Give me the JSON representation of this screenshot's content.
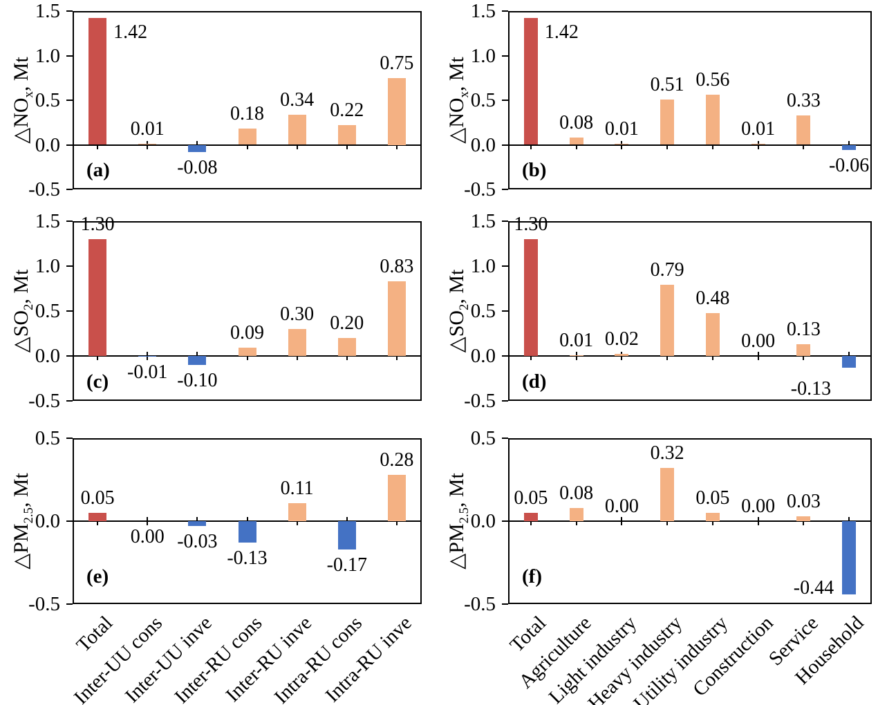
{
  "palette": {
    "total_bar": "#C9504B",
    "positive_bar": "#F4B183",
    "negative_bar": "#4472C4",
    "axis": "#000000",
    "text": "#000000",
    "background": "#FFFFFF"
  },
  "chart_data": [
    {
      "type": "bar",
      "panel_tag": "(a)",
      "ylabel": "△NOx, Mt",
      "ylabel_parts": {
        "pre": "△NO",
        "sub": "x",
        "post": ", Mt"
      },
      "ylim": [
        -0.5,
        1.5
      ],
      "yticks": [
        "1.5",
        "1.0",
        "0.5",
        "0.0",
        "-0.5"
      ],
      "grid": false,
      "legend": null,
      "categories": [
        "Total",
        "Inter-UU cons",
        "Inter-UU inve",
        "Inter-RU cons",
        "Inter-RU inve",
        "Intra-RU cons",
        "Intra-RU inve"
      ],
      "values": [
        1.42,
        0.01,
        -0.08,
        0.18,
        0.34,
        0.22,
        0.75
      ],
      "data_labels": [
        "1.42",
        "0.01",
        "-0.08",
        "0.18",
        "0.34",
        "0.22",
        "0.75"
      ],
      "label_placements": [
        "right",
        "above",
        "below",
        "above",
        "above",
        "above",
        "above"
      ]
    },
    {
      "type": "bar",
      "panel_tag": "(b)",
      "ylabel": "△NOx, Mt",
      "ylabel_parts": {
        "pre": "△NO",
        "sub": "x",
        "post": ", Mt"
      },
      "ylim": [
        -0.5,
        1.5
      ],
      "yticks": [
        "1.5",
        "1.0",
        "0.5",
        "0.0",
        "-0.5"
      ],
      "grid": false,
      "legend": null,
      "categories": [
        "Total",
        "Agriculture",
        "Light industry",
        "Heavy industry",
        "Utility industry",
        "Construction",
        "Service",
        "Household"
      ],
      "values": [
        1.42,
        0.08,
        0.01,
        0.51,
        0.56,
        0.01,
        0.33,
        -0.06
      ],
      "data_labels": [
        "1.42",
        "0.08",
        "0.01",
        "0.51",
        "0.56",
        "0.01",
        "0.33",
        "-0.06"
      ],
      "label_placements": [
        "right",
        "above",
        "above",
        "above",
        "above",
        "above",
        "above",
        "below"
      ]
    },
    {
      "type": "bar",
      "panel_tag": "(c)",
      "ylabel": "△SO2, Mt",
      "ylabel_parts": {
        "pre": "△SO",
        "sub": "2",
        "post": ", Mt"
      },
      "ylim": [
        -0.5,
        1.5
      ],
      "yticks": [
        "1.5",
        "1.0",
        "0.5",
        "0.0",
        "-0.5"
      ],
      "grid": false,
      "legend": null,
      "categories": [
        "Total",
        "Inter-UU cons",
        "Inter-UU inve",
        "Inter-RU cons",
        "Inter-RU inve",
        "Intra-RU cons",
        "Intra-RU inve"
      ],
      "values": [
        1.3,
        -0.01,
        -0.1,
        0.09,
        0.3,
        0.2,
        0.83
      ],
      "data_labels": [
        "1.30",
        "-0.01",
        "-0.10",
        "0.09",
        "0.30",
        "0.20",
        "0.83"
      ],
      "label_placements": [
        "above",
        "below",
        "below",
        "above",
        "above",
        "above",
        "above"
      ]
    },
    {
      "type": "bar",
      "panel_tag": "(d)",
      "ylabel": "△SO2, Mt",
      "ylabel_parts": {
        "pre": "△SO",
        "sub": "2",
        "post": ", Mt"
      },
      "ylim": [
        -0.5,
        1.5
      ],
      "yticks": [
        "1.5",
        "1.0",
        "0.5",
        "0.0",
        "-0.5"
      ],
      "grid": false,
      "legend": null,
      "categories": [
        "Total",
        "Agriculture",
        "Light industry",
        "Heavy industry",
        "Utility industry",
        "Construction",
        "Service",
        "Household"
      ],
      "values": [
        1.3,
        0.01,
        0.02,
        0.79,
        0.48,
        0.0,
        0.13,
        -0.13
      ],
      "data_labels": [
        "1.30",
        "0.01",
        "0.02",
        "0.79",
        "0.48",
        "0.00",
        "0.13",
        "-0.13"
      ],
      "label_placements": [
        "above",
        "above",
        "above",
        "above",
        "above",
        "above",
        "above",
        "below-left"
      ]
    },
    {
      "type": "bar",
      "panel_tag": "(e)",
      "ylabel": "△PM2.5, Mt",
      "ylabel_parts": {
        "pre": "△PM",
        "sub": "2.5",
        "post": ", Mt"
      },
      "ylim": [
        -0.5,
        0.5
      ],
      "yticks": [
        "0.5",
        "0.0",
        "-0.5"
      ],
      "grid": false,
      "legend": null,
      "categories": [
        "Total",
        "Inter-UU cons",
        "Inter-UU inve",
        "Inter-RU cons",
        "Inter-RU inve",
        "Intra-RU cons",
        "Intra-RU inve"
      ],
      "values": [
        0.05,
        0.0,
        -0.03,
        -0.13,
        0.11,
        -0.17,
        0.28
      ],
      "data_labels": [
        "0.05",
        "0.00",
        "-0.03",
        "-0.13",
        "0.11",
        "-0.17",
        "0.28"
      ],
      "label_placements": [
        "above",
        "below",
        "below",
        "below",
        "above",
        "below",
        "above"
      ]
    },
    {
      "type": "bar",
      "panel_tag": "(f)",
      "ylabel": "△PM2.5, Mt",
      "ylabel_parts": {
        "pre": "△PM",
        "sub": "2.5",
        "post": ", Mt"
      },
      "ylim": [
        -0.5,
        0.5
      ],
      "yticks": [
        "0.5",
        "0.0",
        "-0.5"
      ],
      "grid": false,
      "legend": null,
      "categories": [
        "Total",
        "Agriculture",
        "Light industry",
        "Heavy industry",
        "Utility industry",
        "Construction",
        "Service",
        "Household"
      ],
      "values": [
        0.05,
        0.08,
        0.0,
        0.32,
        0.05,
        0.0,
        0.03,
        -0.44
      ],
      "data_labels": [
        "0.05",
        "0.08",
        "0.00",
        "0.32",
        "0.05",
        "0.00",
        "0.03",
        "-0.44"
      ],
      "label_placements": [
        "above",
        "above",
        "above",
        "above",
        "above",
        "above",
        "above",
        "left"
      ]
    }
  ]
}
